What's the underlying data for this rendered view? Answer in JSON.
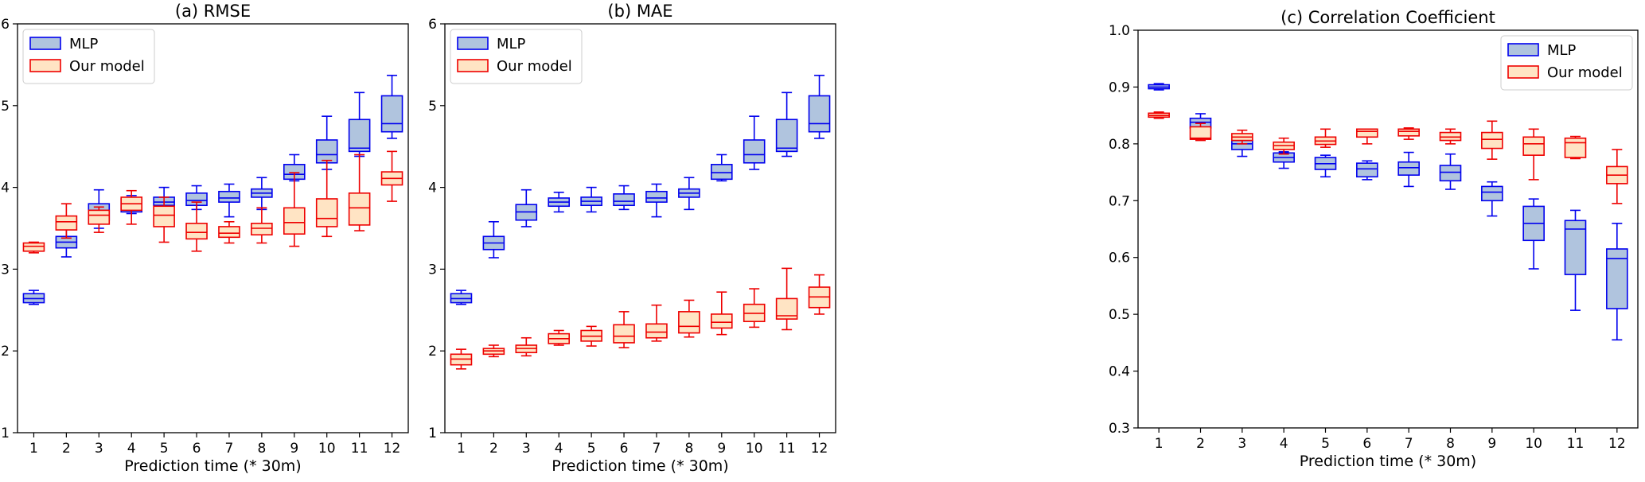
{
  "figure": {
    "colors": {
      "mlp_edge": "#0000ee",
      "mlp_fill": "#b0c4de",
      "ours_edge": "#ee0000",
      "ours_fill": "#ffe4c4"
    }
  },
  "chart_data": [
    {
      "type": "box",
      "title": "(a) RMSE",
      "xlabel": "Prediction time (* 30m)",
      "ylabel": "",
      "ylim": [
        1,
        6
      ],
      "yticks": [
        "1",
        "2",
        "3",
        "4",
        "5",
        "6"
      ],
      "categories": [
        "1",
        "2",
        "3",
        "4",
        "5",
        "6",
        "7",
        "8",
        "9",
        "10",
        "11",
        "12"
      ],
      "legend": {
        "position": "top-left",
        "entries": [
          "MLP",
          "Our model"
        ]
      },
      "series": [
        {
          "name": "MLP",
          "boxes": [
            {
              "min": 2.57,
              "q1": 2.59,
              "med": 2.64,
              "q3": 2.7,
              "max": 2.74
            },
            {
              "min": 3.15,
              "q1": 3.26,
              "med": 3.33,
              "q3": 3.4,
              "max": 3.5
            },
            {
              "min": 3.5,
              "q1": 3.6,
              "med": 3.72,
              "q3": 3.8,
              "max": 3.97
            },
            {
              "min": 3.68,
              "q1": 3.7,
              "med": 3.81,
              "q3": 3.86,
              "max": 3.9
            },
            {
              "min": 3.7,
              "q1": 3.78,
              "med": 3.82,
              "q3": 3.88,
              "max": 4.0
            },
            {
              "min": 3.73,
              "q1": 3.78,
              "med": 3.84,
              "q3": 3.93,
              "max": 4.02
            },
            {
              "min": 3.64,
              "q1": 3.82,
              "med": 3.87,
              "q3": 3.95,
              "max": 4.04
            },
            {
              "min": 3.73,
              "q1": 3.88,
              "med": 3.93,
              "q3": 3.98,
              "max": 4.12
            },
            {
              "min": 4.08,
              "q1": 4.1,
              "med": 4.16,
              "q3": 4.28,
              "max": 4.4
            },
            {
              "min": 4.22,
              "q1": 4.3,
              "med": 4.4,
              "q3": 4.58,
              "max": 4.87
            },
            {
              "min": 4.38,
              "q1": 4.44,
              "med": 4.48,
              "q3": 4.83,
              "max": 5.16
            },
            {
              "min": 4.6,
              "q1": 4.68,
              "med": 4.78,
              "q3": 5.12,
              "max": 5.37
            }
          ]
        },
        {
          "name": "Our model",
          "boxes": [
            {
              "min": 3.2,
              "q1": 3.22,
              "med": 3.28,
              "q3": 3.32,
              "max": 3.33
            },
            {
              "min": 3.38,
              "q1": 3.48,
              "med": 3.58,
              "q3": 3.65,
              "max": 3.8
            },
            {
              "min": 3.45,
              "q1": 3.55,
              "med": 3.66,
              "q3": 3.72,
              "max": 3.76
            },
            {
              "min": 3.55,
              "q1": 3.72,
              "med": 3.8,
              "q3": 3.88,
              "max": 3.96
            },
            {
              "min": 3.33,
              "q1": 3.52,
              "med": 3.66,
              "q3": 3.77,
              "max": 3.88
            },
            {
              "min": 3.22,
              "q1": 3.37,
              "med": 3.45,
              "q3": 3.56,
              "max": 3.82
            },
            {
              "min": 3.32,
              "q1": 3.39,
              "med": 3.44,
              "q3": 3.52,
              "max": 3.58
            },
            {
              "min": 3.32,
              "q1": 3.42,
              "med": 3.5,
              "q3": 3.56,
              "max": 3.75
            },
            {
              "min": 3.28,
              "q1": 3.43,
              "med": 3.57,
              "q3": 3.75,
              "max": 4.18
            },
            {
              "min": 3.4,
              "q1": 3.52,
              "med": 3.62,
              "q3": 3.86,
              "max": 4.33
            },
            {
              "min": 3.47,
              "q1": 3.54,
              "med": 3.75,
              "q3": 3.93,
              "max": 4.4
            },
            {
              "min": 3.83,
              "q1": 4.03,
              "med": 4.11,
              "q3": 4.19,
              "max": 4.44
            }
          ]
        }
      ]
    },
    {
      "type": "box",
      "title": "(b) MAE",
      "xlabel": "Prediction time (* 30m)",
      "ylabel": "",
      "ylim": [
        1,
        6
      ],
      "yticks": [
        "1",
        "2",
        "3",
        "4",
        "5",
        "6"
      ],
      "categories": [
        "1",
        "2",
        "3",
        "4",
        "5",
        "6",
        "7",
        "8",
        "9",
        "10",
        "11",
        "12"
      ],
      "legend": {
        "position": "top-left",
        "entries": [
          "MLP",
          "Our model"
        ]
      },
      "series": [
        {
          "name": "MLP",
          "boxes": [
            {
              "min": 2.57,
              "q1": 2.59,
              "med": 2.64,
              "q3": 2.7,
              "max": 2.74
            },
            {
              "min": 3.14,
              "q1": 3.24,
              "med": 3.32,
              "q3": 3.4,
              "max": 3.58
            },
            {
              "min": 3.52,
              "q1": 3.6,
              "med": 3.7,
              "q3": 3.79,
              "max": 3.97
            },
            {
              "min": 3.7,
              "q1": 3.77,
              "med": 3.82,
              "q3": 3.87,
              "max": 3.94
            },
            {
              "min": 3.7,
              "q1": 3.78,
              "med": 3.83,
              "q3": 3.88,
              "max": 4.0
            },
            {
              "min": 3.73,
              "q1": 3.78,
              "med": 3.83,
              "q3": 3.92,
              "max": 4.02
            },
            {
              "min": 3.64,
              "q1": 3.82,
              "med": 3.87,
              "q3": 3.95,
              "max": 4.04
            },
            {
              "min": 3.73,
              "q1": 3.88,
              "med": 3.93,
              "q3": 3.98,
              "max": 4.12
            },
            {
              "min": 4.08,
              "q1": 4.1,
              "med": 4.18,
              "q3": 4.28,
              "max": 4.4
            },
            {
              "min": 4.22,
              "q1": 4.3,
              "med": 4.4,
              "q3": 4.58,
              "max": 4.87
            },
            {
              "min": 4.38,
              "q1": 4.44,
              "med": 4.48,
              "q3": 4.83,
              "max": 5.16
            },
            {
              "min": 4.6,
              "q1": 4.68,
              "med": 4.78,
              "q3": 5.12,
              "max": 5.37
            }
          ]
        },
        {
          "name": "Our model",
          "boxes": [
            {
              "min": 1.78,
              "q1": 1.83,
              "med": 1.9,
              "q3": 1.96,
              "max": 2.02
            },
            {
              "min": 1.93,
              "q1": 1.96,
              "med": 2.0,
              "q3": 2.03,
              "max": 2.07
            },
            {
              "min": 1.94,
              "q1": 1.98,
              "med": 2.03,
              "q3": 2.07,
              "max": 2.16
            },
            {
              "min": 2.07,
              "q1": 2.09,
              "med": 2.15,
              "q3": 2.21,
              "max": 2.25
            },
            {
              "min": 2.06,
              "q1": 2.12,
              "med": 2.18,
              "q3": 2.25,
              "max": 2.3
            },
            {
              "min": 2.04,
              "q1": 2.1,
              "med": 2.18,
              "q3": 2.32,
              "max": 2.48
            },
            {
              "min": 2.12,
              "q1": 2.16,
              "med": 2.23,
              "q3": 2.33,
              "max": 2.56
            },
            {
              "min": 2.17,
              "q1": 2.22,
              "med": 2.3,
              "q3": 2.48,
              "max": 2.62
            },
            {
              "min": 2.2,
              "q1": 2.28,
              "med": 2.35,
              "q3": 2.45,
              "max": 2.72
            },
            {
              "min": 2.29,
              "q1": 2.36,
              "med": 2.46,
              "q3": 2.57,
              "max": 2.76
            },
            {
              "min": 2.26,
              "q1": 2.39,
              "med": 2.43,
              "q3": 2.64,
              "max": 3.01
            },
            {
              "min": 2.45,
              "q1": 2.53,
              "med": 2.66,
              "q3": 2.78,
              "max": 2.93
            }
          ]
        }
      ]
    },
    {
      "type": "box",
      "title": "(c) Correlation Coefficient",
      "xlabel": "Prediction time (* 30m)",
      "ylabel": "",
      "ylim": [
        0.3,
        1.0
      ],
      "yticks": [
        "0.3",
        "0.4",
        "0.5",
        "0.6",
        "0.7",
        "0.8",
        "0.9",
        "1.0"
      ],
      "categories": [
        "1",
        "2",
        "3",
        "4",
        "5",
        "6",
        "7",
        "8",
        "9",
        "10",
        "11",
        "12"
      ],
      "legend": {
        "position": "top-right",
        "entries": [
          "MLP",
          "Our model"
        ]
      },
      "series": [
        {
          "name": "MLP",
          "boxes": [
            {
              "min": 0.895,
              "q1": 0.897,
              "med": 0.9,
              "q3": 0.904,
              "max": 0.906
            },
            {
              "min": 0.823,
              "q1": 0.828,
              "med": 0.838,
              "q3": 0.845,
              "max": 0.853
            },
            {
              "min": 0.778,
              "q1": 0.79,
              "med": 0.8,
              "q3": 0.806,
              "max": 0.813
            },
            {
              "min": 0.757,
              "q1": 0.768,
              "med": 0.776,
              "q3": 0.784,
              "max": 0.786
            },
            {
              "min": 0.742,
              "q1": 0.755,
              "med": 0.765,
              "q3": 0.776,
              "max": 0.78
            },
            {
              "min": 0.737,
              "q1": 0.742,
              "med": 0.756,
              "q3": 0.766,
              "max": 0.77
            },
            {
              "min": 0.725,
              "q1": 0.745,
              "med": 0.758,
              "q3": 0.768,
              "max": 0.785
            },
            {
              "min": 0.72,
              "q1": 0.735,
              "med": 0.75,
              "q3": 0.762,
              "max": 0.782
            },
            {
              "min": 0.673,
              "q1": 0.7,
              "med": 0.715,
              "q3": 0.725,
              "max": 0.733
            },
            {
              "min": 0.58,
              "q1": 0.63,
              "med": 0.66,
              "q3": 0.69,
              "max": 0.703
            },
            {
              "min": 0.507,
              "q1": 0.57,
              "med": 0.65,
              "q3": 0.665,
              "max": 0.683
            },
            {
              "min": 0.455,
              "q1": 0.51,
              "med": 0.598,
              "q3": 0.615,
              "max": 0.66
            }
          ]
        },
        {
          "name": "Our model",
          "boxes": [
            {
              "min": 0.845,
              "q1": 0.847,
              "med": 0.85,
              "q3": 0.854,
              "max": 0.856
            },
            {
              "min": 0.806,
              "q1": 0.808,
              "med": 0.81,
              "q3": 0.83,
              "max": 0.836
            },
            {
              "min": 0.8,
              "q1": 0.806,
              "med": 0.812,
              "q3": 0.818,
              "max": 0.824
            },
            {
              "min": 0.782,
              "q1": 0.79,
              "med": 0.797,
              "q3": 0.803,
              "max": 0.81
            },
            {
              "min": 0.794,
              "q1": 0.799,
              "med": 0.805,
              "q3": 0.812,
              "max": 0.826
            },
            {
              "min": 0.8,
              "q1": 0.812,
              "med": 0.822,
              "q3": 0.826,
              "max": 0.826
            },
            {
              "min": 0.808,
              "q1": 0.814,
              "med": 0.822,
              "q3": 0.826,
              "max": 0.828
            },
            {
              "min": 0.8,
              "q1": 0.806,
              "med": 0.812,
              "q3": 0.82,
              "max": 0.826
            },
            {
              "min": 0.773,
              "q1": 0.792,
              "med": 0.808,
              "q3": 0.82,
              "max": 0.84
            },
            {
              "min": 0.737,
              "q1": 0.78,
              "med": 0.8,
              "q3": 0.812,
              "max": 0.826
            },
            {
              "min": 0.774,
              "q1": 0.776,
              "med": 0.802,
              "q3": 0.81,
              "max": 0.813
            },
            {
              "min": 0.695,
              "q1": 0.73,
              "med": 0.745,
              "q3": 0.76,
              "max": 0.79
            }
          ]
        }
      ]
    }
  ]
}
